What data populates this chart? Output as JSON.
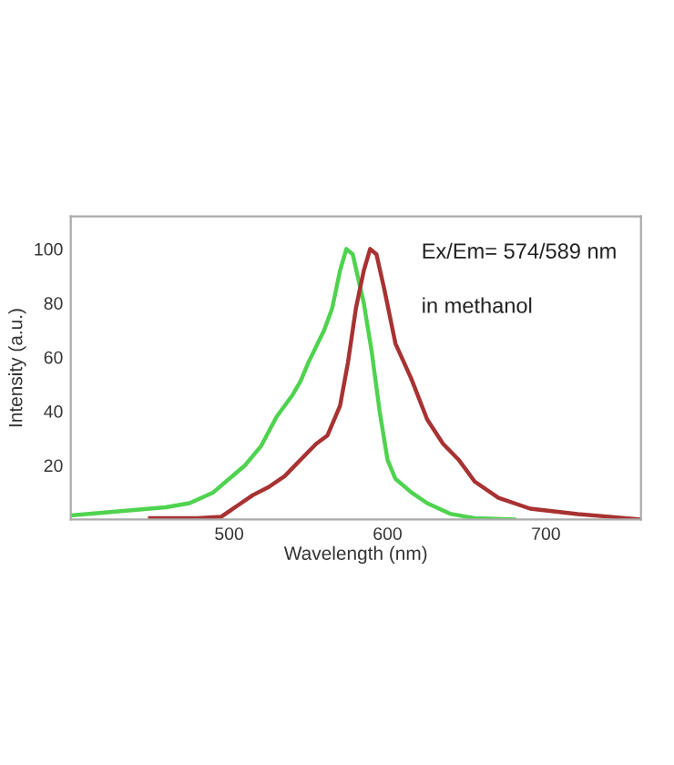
{
  "chart_data": {
    "type": "line",
    "xlabel": "Wavelength (nm)",
    "ylabel": "Intensity (a.u.)",
    "xlim": [
      400,
      760
    ],
    "ylim": [
      0,
      112
    ],
    "xticks": [
      500,
      600,
      700
    ],
    "yticks": [
      20,
      40,
      60,
      80,
      100
    ],
    "grid": false,
    "marker": "none",
    "line_style": "solid",
    "annotations": [
      "Ex/Em= 574/589 nm",
      "in methanol"
    ],
    "series": [
      {
        "color": "#4fd34f",
        "x": [
          400,
          420,
          440,
          460,
          475,
          490,
          500,
          510,
          520,
          530,
          540,
          545,
          550,
          560,
          565,
          570,
          574,
          578,
          585,
          590,
          595,
          600,
          605,
          615,
          625,
          640,
          655,
          680
        ],
        "values": [
          1.5,
          2.5,
          3.5,
          4.5,
          6,
          10,
          15,
          20,
          27,
          38,
          46,
          51,
          58,
          70,
          78,
          92,
          100,
          98,
          80,
          62,
          40,
          22,
          15,
          10,
          6,
          2,
          0.5,
          0
        ]
      },
      {
        "color": "#a83232",
        "x": [
          450,
          480,
          495,
          505,
          515,
          525,
          535,
          545,
          555,
          562,
          570,
          575,
          580,
          585,
          589,
          593,
          598,
          605,
          615,
          625,
          635,
          645,
          655,
          670,
          690,
          720,
          740,
          760
        ],
        "values": [
          0.5,
          0.5,
          1,
          5,
          9,
          12,
          16,
          22,
          28,
          31,
          42,
          58,
          78,
          92,
          100,
          98,
          85,
          65,
          52,
          37,
          28,
          22,
          14,
          8,
          4,
          2,
          1,
          0
        ]
      }
    ]
  }
}
